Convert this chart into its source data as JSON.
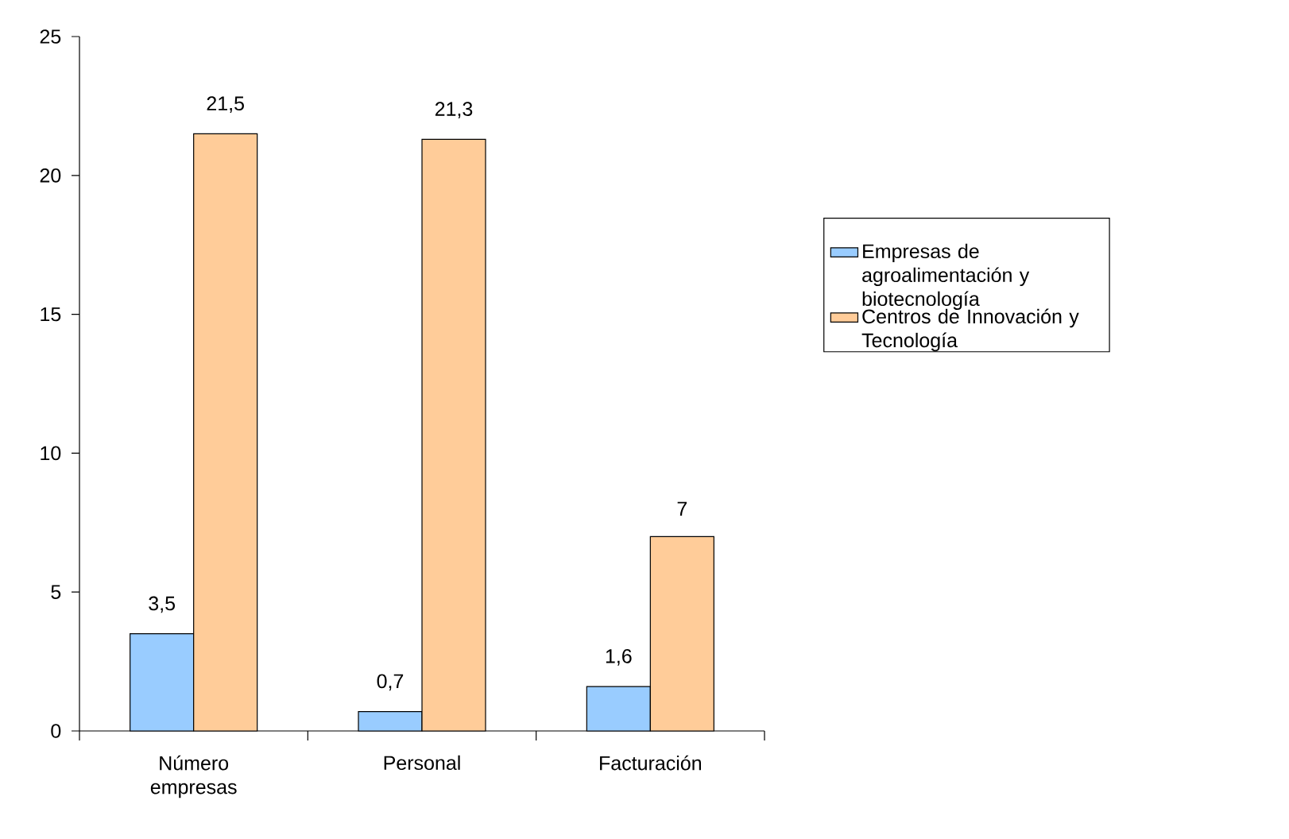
{
  "chart_data": {
    "type": "bar",
    "categories": [
      "Número empresas",
      "Personal",
      "Facturación"
    ],
    "series": [
      {
        "name": "Empresas de agroalimentación y biotecnología",
        "color": "#99ccff",
        "values": [
          3.5,
          0.7,
          1.6
        ],
        "value_labels": [
          "3,5",
          "0,7",
          "1,6"
        ]
      },
      {
        "name": "Centros de Innovación y Tecnología",
        "color": "#ffcc99",
        "values": [
          21.5,
          21.3,
          7
        ],
        "value_labels": [
          "21,5",
          "21,3",
          "7"
        ]
      }
    ],
    "ylim": [
      0,
      25
    ],
    "yticks": [
      0,
      5,
      10,
      15,
      20,
      25
    ],
    "grid": false,
    "legend": "right"
  }
}
